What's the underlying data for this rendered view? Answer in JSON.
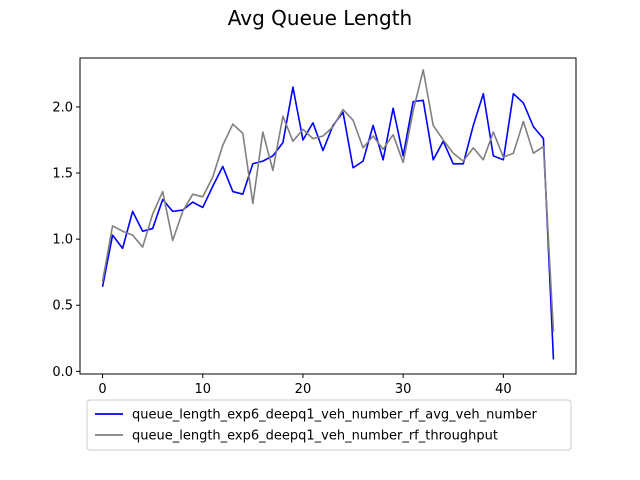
{
  "chart_data": {
    "type": "line",
    "title": "Avg Queue Length",
    "xlabel": "",
    "ylabel": "",
    "xlim": [
      -2.25,
      47.25
    ],
    "ylim": [
      -0.02,
      2.37
    ],
    "grid": false,
    "legend_position": "bottom",
    "x_ticks": [
      0,
      10,
      20,
      30,
      40
    ],
    "x_tick_labels": [
      "0",
      "10",
      "20",
      "30",
      "40"
    ],
    "y_ticks": [
      0.0,
      0.5,
      1.0,
      1.5,
      2.0
    ],
    "y_tick_labels": [
      "0.0",
      "0.5",
      "1.0",
      "1.5",
      "2.0"
    ],
    "x": [
      0,
      1,
      2,
      3,
      4,
      5,
      6,
      7,
      8,
      9,
      10,
      11,
      12,
      13,
      14,
      15,
      16,
      17,
      18,
      19,
      20,
      21,
      22,
      23,
      24,
      25,
      26,
      27,
      28,
      29,
      30,
      31,
      32,
      33,
      34,
      35,
      36,
      37,
      38,
      39,
      40,
      41,
      42,
      43,
      44,
      45
    ],
    "series": [
      {
        "name": "queue_length_exp6_deepq1_veh_number_rf_avg_veh_number",
        "color": "#0000ff",
        "values": [
          0.64,
          1.03,
          0.93,
          1.21,
          1.06,
          1.08,
          1.3,
          1.21,
          1.22,
          1.28,
          1.24,
          1.4,
          1.55,
          1.36,
          1.34,
          1.57,
          1.59,
          1.63,
          1.73,
          2.15,
          1.75,
          1.88,
          1.67,
          1.86,
          1.96,
          1.54,
          1.59,
          1.86,
          1.6,
          1.99,
          1.63,
          2.04,
          2.05,
          1.6,
          1.74,
          1.57,
          1.57,
          1.86,
          2.1,
          1.63,
          1.6,
          2.1,
          2.03,
          1.85,
          1.76,
          0.09
        ]
      },
      {
        "name": "queue_length_exp6_deepq1_veh_number_rf_throughput",
        "color": "#808080",
        "values": [
          0.68,
          1.1,
          1.06,
          1.03,
          0.94,
          1.19,
          1.36,
          0.99,
          1.21,
          1.34,
          1.32,
          1.47,
          1.71,
          1.87,
          1.8,
          1.27,
          1.81,
          1.52,
          1.93,
          1.74,
          1.83,
          1.76,
          1.78,
          1.85,
          1.98,
          1.9,
          1.69,
          1.78,
          1.68,
          1.79,
          1.58,
          1.97,
          2.28,
          1.86,
          1.75,
          1.65,
          1.59,
          1.69,
          1.6,
          1.81,
          1.62,
          1.65,
          1.89,
          1.65,
          1.7,
          0.3
        ]
      }
    ]
  }
}
